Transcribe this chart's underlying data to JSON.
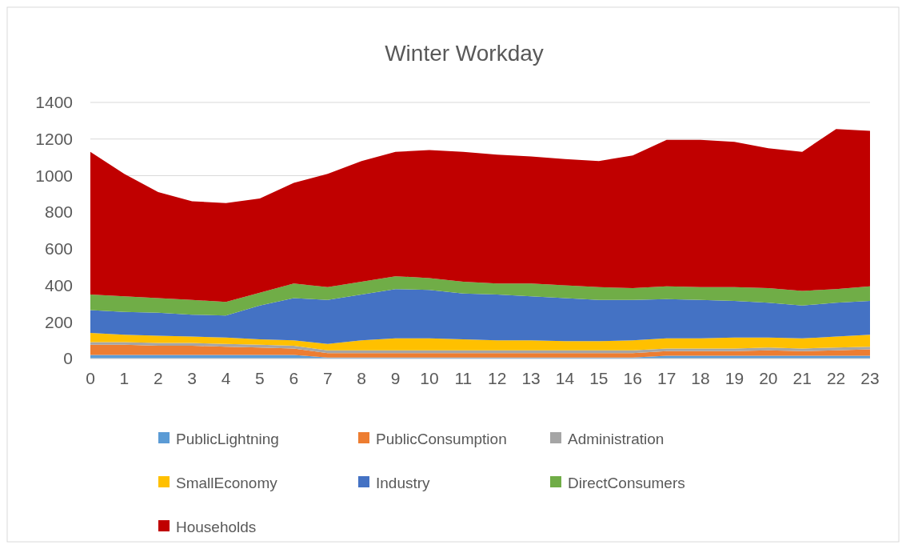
{
  "chart_data": {
    "type": "area",
    "title": "Winter Workday",
    "stacked": true,
    "x": [
      0,
      1,
      2,
      3,
      4,
      5,
      6,
      7,
      8,
      9,
      10,
      11,
      12,
      13,
      14,
      15,
      16,
      17,
      18,
      19,
      20,
      21,
      22,
      23
    ],
    "xlim": [
      0,
      23
    ],
    "xticks": [
      0,
      1,
      2,
      3,
      4,
      5,
      6,
      7,
      8,
      9,
      10,
      11,
      12,
      13,
      14,
      15,
      16,
      17,
      18,
      19,
      20,
      21,
      22,
      23
    ],
    "ylim": [
      0,
      1400
    ],
    "yticks": [
      0,
      200,
      400,
      600,
      800,
      1000,
      1200,
      1400
    ],
    "grid": "y",
    "legend": "bottom",
    "series": [
      {
        "name": "PublicLightning",
        "color": "#5b9bd5",
        "values": [
          20,
          20,
          20,
          20,
          20,
          20,
          20,
          5,
          5,
          5,
          5,
          5,
          5,
          5,
          5,
          5,
          5,
          15,
          15,
          15,
          15,
          15,
          15,
          15
        ]
      },
      {
        "name": "PublicConsumption",
        "color": "#ed7d31",
        "values": [
          55,
          55,
          50,
          50,
          45,
          40,
          35,
          25,
          25,
          25,
          25,
          25,
          25,
          25,
          25,
          25,
          25,
          25,
          25,
          25,
          30,
          25,
          30,
          35
        ]
      },
      {
        "name": "Administration",
        "color": "#a5a5a5",
        "values": [
          15,
          15,
          15,
          15,
          15,
          15,
          15,
          15,
          15,
          15,
          15,
          15,
          15,
          15,
          15,
          15,
          15,
          15,
          15,
          15,
          15,
          15,
          15,
          15
        ]
      },
      {
        "name": "SmallEconomy",
        "color": "#ffc000",
        "values": [
          50,
          40,
          40,
          35,
          35,
          30,
          30,
          35,
          55,
          65,
          65,
          60,
          55,
          55,
          50,
          50,
          55,
          55,
          55,
          60,
          55,
          55,
          60,
          65
        ]
      },
      {
        "name": "Industry",
        "color": "#4472c4",
        "values": [
          125,
          125,
          125,
          120,
          120,
          185,
          230,
          240,
          250,
          270,
          265,
          250,
          250,
          240,
          235,
          225,
          220,
          215,
          210,
          200,
          190,
          180,
          185,
          185
        ]
      },
      {
        "name": "DirectConsumers",
        "color": "#70ad47",
        "values": [
          85,
          85,
          80,
          80,
          75,
          70,
          80,
          70,
          70,
          70,
          65,
          65,
          60,
          70,
          70,
          70,
          65,
          70,
          70,
          75,
          80,
          80,
          75,
          80
        ]
      },
      {
        "name": "Households",
        "color": "#c00000",
        "values": [
          780,
          670,
          580,
          540,
          540,
          515,
          550,
          620,
          660,
          680,
          700,
          710,
          705,
          695,
          690,
          690,
          725,
          800,
          805,
          795,
          765,
          760,
          875,
          850
        ]
      }
    ]
  }
}
